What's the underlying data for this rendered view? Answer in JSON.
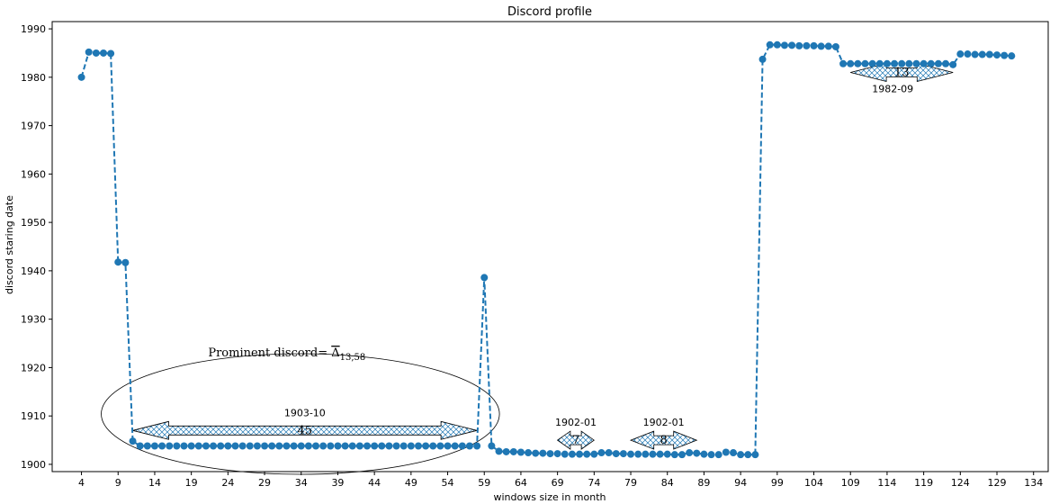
{
  "chart_data": {
    "type": "line",
    "title": "Discord profile",
    "xlabel": "windows size in month",
    "ylabel": "discord staring date",
    "xlim": [
      0,
      136
    ],
    "ylim": [
      1898.5,
      1991.5
    ],
    "xticks": [
      4,
      9,
      14,
      19,
      24,
      29,
      34,
      39,
      44,
      49,
      54,
      59,
      64,
      69,
      74,
      79,
      84,
      89,
      94,
      99,
      104,
      109,
      114,
      119,
      124,
      129,
      134
    ],
    "yticks": [
      1900,
      1910,
      1920,
      1930,
      1940,
      1950,
      1960,
      1970,
      1980,
      1990
    ],
    "grid": false,
    "color": "#1f77b4",
    "series": [
      {
        "x": [
          4,
          5,
          6,
          7,
          8,
          9,
          10,
          11,
          12,
          13,
          14,
          15,
          16,
          17,
          18,
          19,
          20,
          21,
          22,
          23,
          24,
          25,
          26,
          27,
          28,
          29,
          30,
          31,
          32,
          33,
          34,
          35,
          36,
          37,
          38,
          39,
          40,
          41,
          42,
          43,
          44,
          45,
          46,
          47,
          48,
          49,
          50,
          51,
          52,
          53,
          54,
          55,
          56,
          57,
          58,
          59,
          60,
          61,
          62,
          63,
          64,
          65,
          66,
          67,
          68,
          69,
          70,
          71,
          72,
          73,
          74,
          75,
          76,
          77,
          78,
          79,
          80,
          81,
          82,
          83,
          84,
          85,
          86,
          87,
          88,
          89,
          90,
          91,
          92,
          93,
          94,
          95,
          96,
          97,
          98,
          99,
          100,
          101,
          102,
          103,
          104,
          105,
          106,
          107,
          108,
          109,
          110,
          111,
          112,
          113,
          114,
          115,
          116,
          117,
          118,
          119,
          120,
          121,
          122,
          123,
          124,
          125,
          126,
          127,
          128,
          129,
          130,
          131
        ],
        "y": [
          1980,
          1985.2,
          1985,
          1985,
          1984.9,
          1941.8,
          1941.7,
          1904.8,
          1903.8,
          1903.8,
          1903.8,
          1903.8,
          1903.8,
          1903.8,
          1903.8,
          1903.8,
          1903.8,
          1903.8,
          1903.8,
          1903.8,
          1903.8,
          1903.8,
          1903.8,
          1903.8,
          1903.8,
          1903.8,
          1903.8,
          1903.8,
          1903.8,
          1903.8,
          1903.8,
          1903.8,
          1903.8,
          1903.8,
          1903.8,
          1903.8,
          1903.8,
          1903.8,
          1903.8,
          1903.8,
          1903.8,
          1903.8,
          1903.8,
          1903.8,
          1903.8,
          1903.8,
          1903.8,
          1903.8,
          1903.8,
          1903.8,
          1903.8,
          1903.8,
          1903.8,
          1903.8,
          1903.8,
          1938.6,
          1903.8,
          1902.7,
          1902.6,
          1902.6,
          1902.5,
          1902.4,
          1902.3,
          1902.3,
          1902.2,
          1902.2,
          1902.1,
          1902.1,
          1902.1,
          1902.1,
          1902.1,
          1902.4,
          1902.4,
          1902.2,
          1902.2,
          1902.1,
          1902.1,
          1902.1,
          1902.1,
          1902.1,
          1902.1,
          1902,
          1902,
          1902.4,
          1902.3,
          1902.1,
          1902,
          1902,
          1902.5,
          1902.4,
          1902,
          1902,
          1902,
          1983.7,
          1986.7,
          1986.7,
          1986.6,
          1986.6,
          1986.5,
          1986.5,
          1986.5,
          1986.4,
          1986.4,
          1986.3,
          1982.8,
          1982.8,
          1982.8,
          1982.8,
          1982.8,
          1982.8,
          1982.8,
          1982.8,
          1982.8,
          1982.8,
          1982.8,
          1982.8,
          1982.8,
          1982.8,
          1982.8,
          1982.6,
          1984.8,
          1984.8,
          1984.7,
          1984.7,
          1984.7,
          1984.6,
          1984.5,
          1984.4
        ]
      }
    ],
    "annotations": {
      "prominent": {
        "prefix": "Prominent discord= ",
        "symbol": "Δ",
        "subscript": "13,58"
      },
      "arrows": [
        {
          "x1": 11,
          "x2": 58,
          "y": 1907,
          "label": "45",
          "date": "1903-10"
        },
        {
          "x1": 69,
          "x2": 74,
          "y": 1905,
          "label": "7",
          "date": "1902-01"
        },
        {
          "x1": 79,
          "x2": 88,
          "y": 1905,
          "label": "8",
          "date": "1902-01"
        },
        {
          "x1": 109,
          "x2": 123,
          "y": 1981,
          "label": "13",
          "date": "1982-09"
        }
      ]
    }
  }
}
